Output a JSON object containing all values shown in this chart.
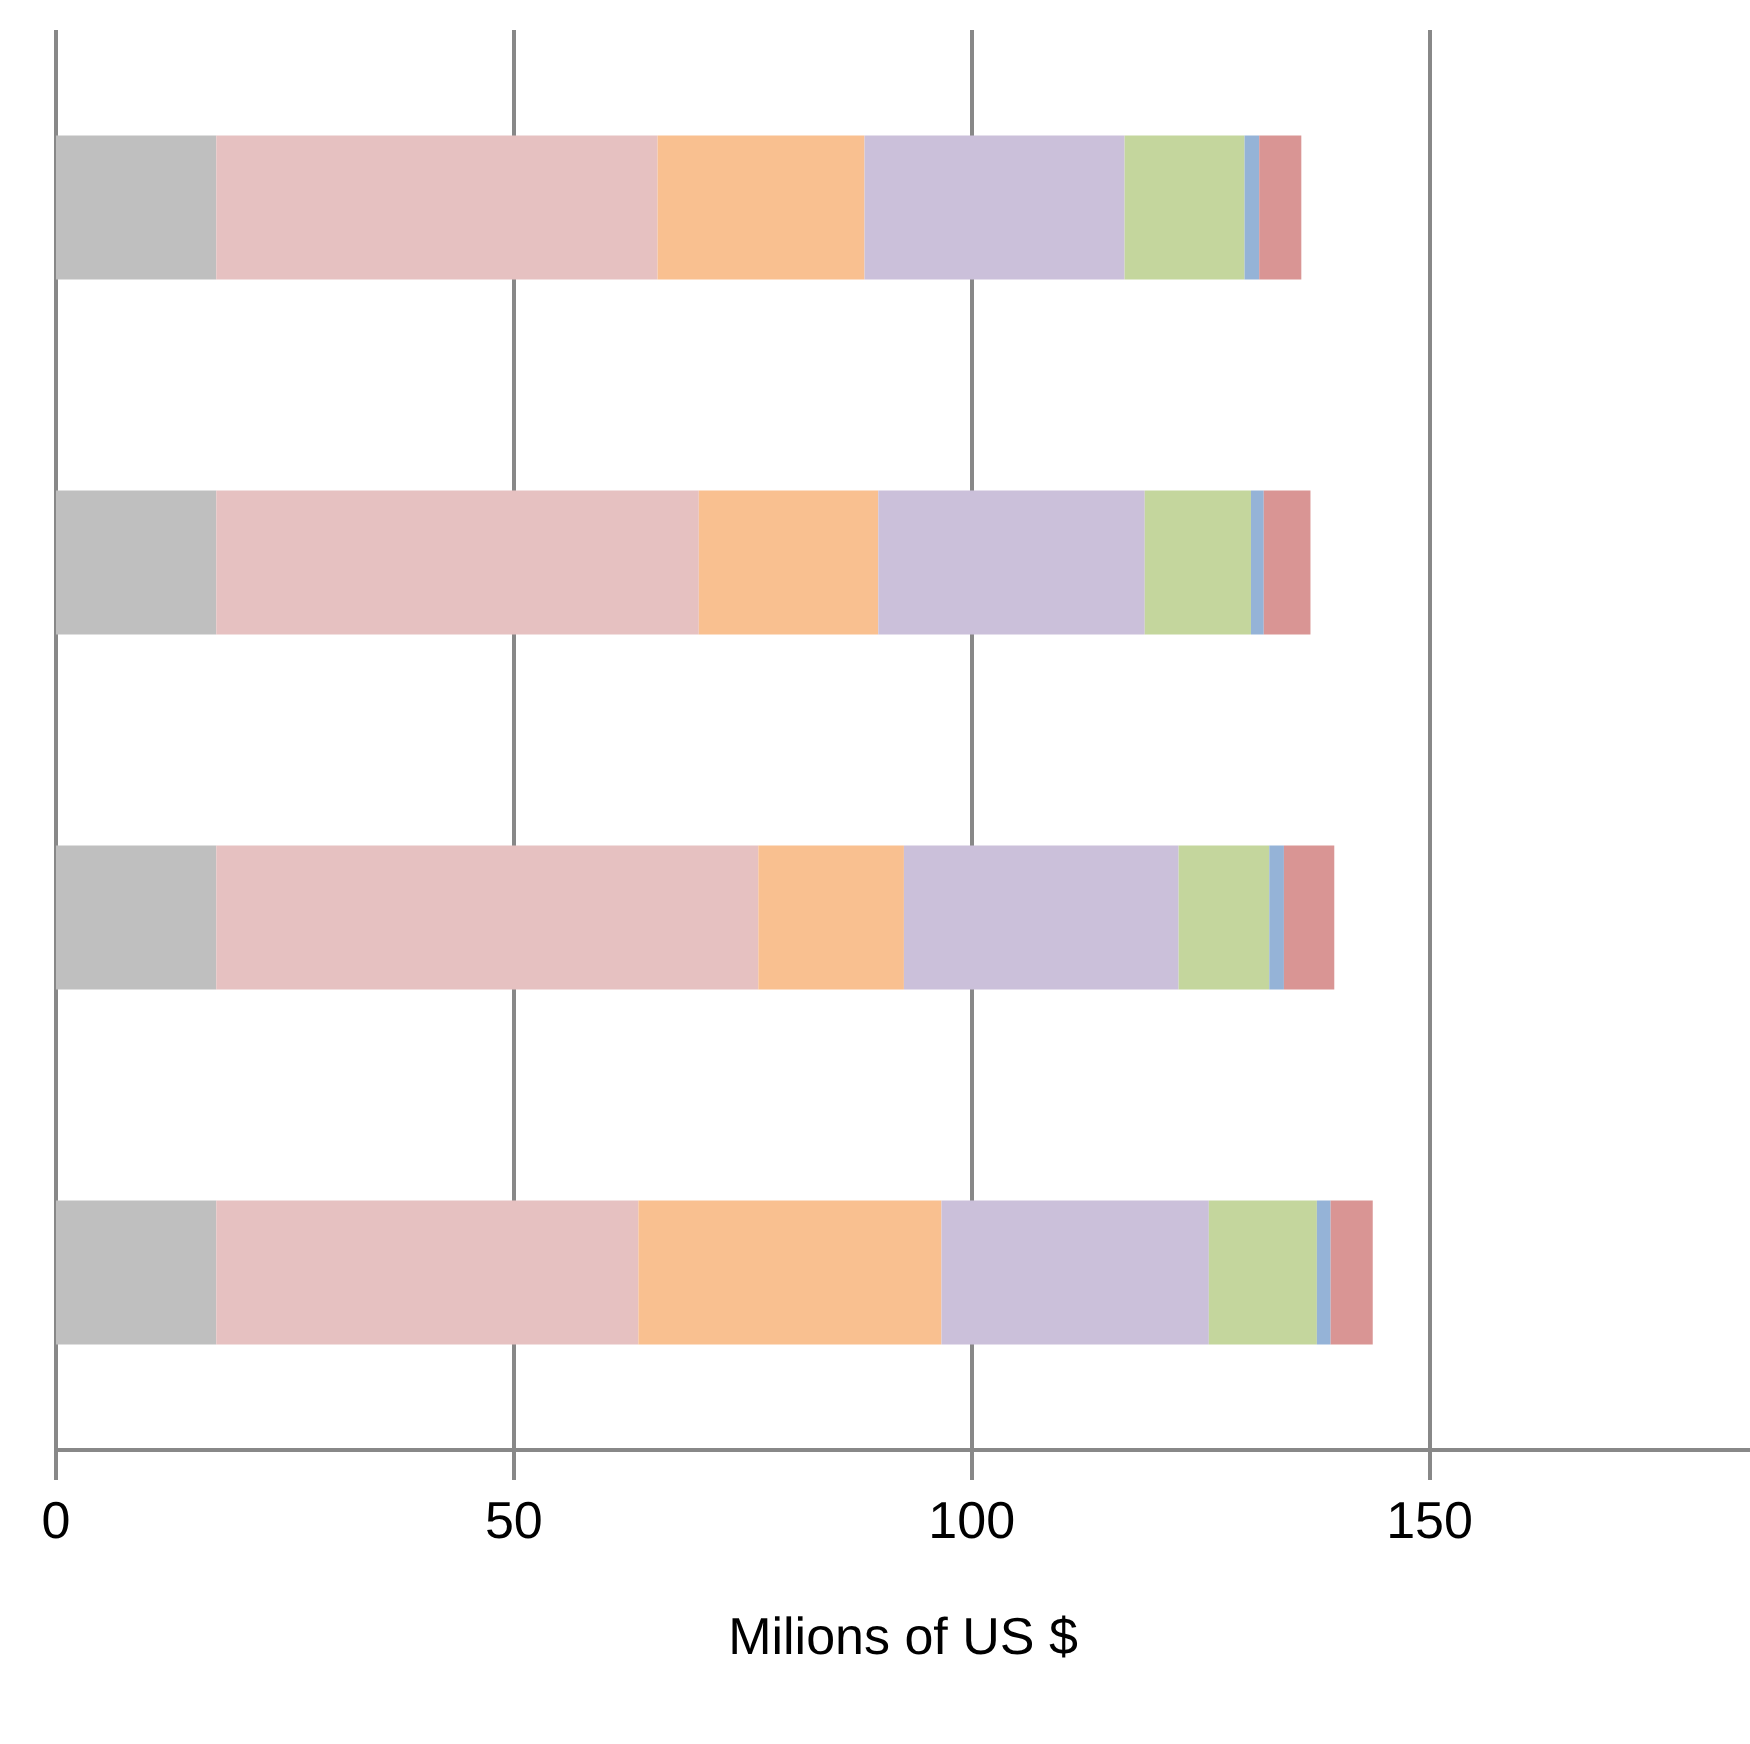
{
  "chart_data": {
    "type": "bar",
    "orientation": "horizontal",
    "stacked": true,
    "xlabel": "Milions of US $",
    "categories": [
      null,
      null,
      null,
      null
    ],
    "series": [
      {
        "color": "#bfbfbf",
        "values": [
          17.5,
          17.5,
          17.5,
          17.5
        ]
      },
      {
        "color": "#e6c1c1",
        "values": [
          48.2,
          52.7,
          59.2,
          46.1
        ]
      },
      {
        "color": "#f9c090",
        "values": [
          22.6,
          19.6,
          15.9,
          33.1
        ]
      },
      {
        "color": "#cbc0da",
        "values": [
          28.4,
          29.1,
          30.0,
          29.2
        ]
      },
      {
        "color": "#c4d69d",
        "values": [
          13.1,
          11.6,
          9.9,
          11.8
        ]
      },
      {
        "color": "#95b3d7",
        "values": [
          1.6,
          1.4,
          1.6,
          1.5
        ]
      },
      {
        "color": "#d99594",
        "values": [
          4.6,
          5.1,
          5.5,
          4.6
        ]
      }
    ],
    "xlim": [
      0,
      185
    ],
    "xticks": [
      0,
      50,
      100,
      150
    ],
    "grid": "x"
  }
}
